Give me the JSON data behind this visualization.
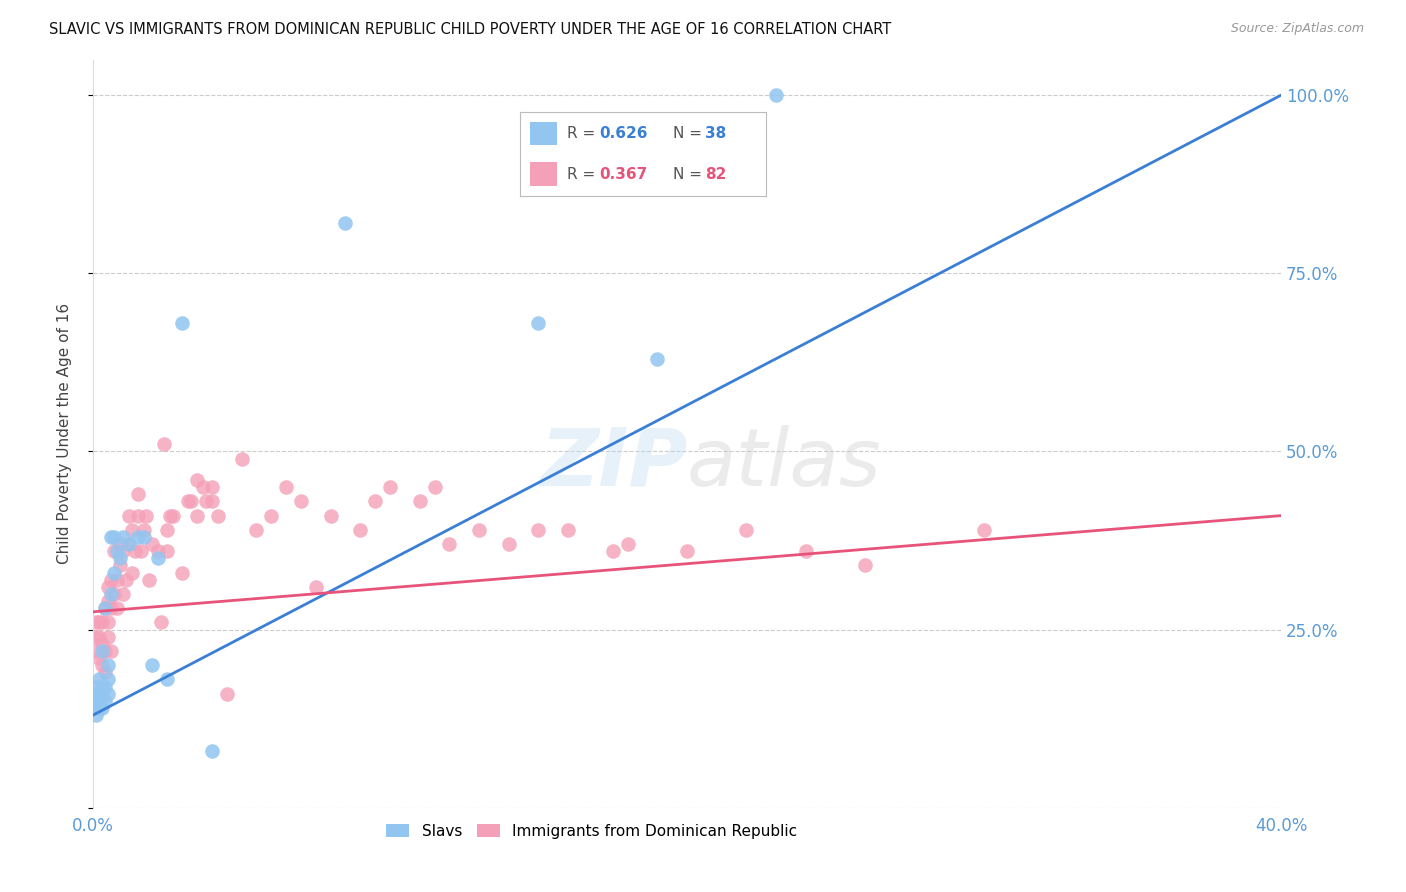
{
  "title": "SLAVIC VS IMMIGRANTS FROM DOMINICAN REPUBLIC CHILD POVERTY UNDER THE AGE OF 16 CORRELATION CHART",
  "source": "Source: ZipAtlas.com",
  "ylabel": "Child Poverty Under the Age of 16",
  "background_color": "#ffffff",
  "grid_color": "#cccccc",
  "slavic_R": 0.626,
  "slavic_N": 38,
  "dominican_R": 0.367,
  "dominican_N": 82,
  "blue_color": "#92c5f0",
  "pink_color": "#f4a0b8",
  "blue_line_color": "#3a7fd5",
  "pink_line_color": "#e8537a",
  "x_min": 0.0,
  "x_max": 0.4,
  "y_min": 0.0,
  "y_max": 1.05,
  "x_ticks": [
    0.0,
    0.05,
    0.1,
    0.15,
    0.2,
    0.25,
    0.3,
    0.35,
    0.4
  ],
  "y_ticks": [
    0.0,
    0.25,
    0.5,
    0.75,
    1.0
  ],
  "blue_line_x0": 0.0,
  "blue_line_y0": 0.13,
  "blue_line_x1": 0.4,
  "blue_line_y1": 1.0,
  "pink_line_x0": 0.0,
  "pink_line_y0": 0.275,
  "pink_line_x1": 0.4,
  "pink_line_y1": 0.41,
  "slavic_x": [
    0.001,
    0.001,
    0.001,
    0.001,
    0.001,
    0.002,
    0.002,
    0.002,
    0.002,
    0.003,
    0.003,
    0.003,
    0.003,
    0.004,
    0.004,
    0.004,
    0.005,
    0.005,
    0.005,
    0.006,
    0.006,
    0.007,
    0.007,
    0.008,
    0.009,
    0.01,
    0.012,
    0.015,
    0.017,
    0.02,
    0.022,
    0.025,
    0.03,
    0.04,
    0.085,
    0.15,
    0.19,
    0.23
  ],
  "slavic_y": [
    0.17,
    0.16,
    0.15,
    0.14,
    0.13,
    0.15,
    0.16,
    0.14,
    0.18,
    0.14,
    0.16,
    0.17,
    0.22,
    0.15,
    0.17,
    0.28,
    0.16,
    0.18,
    0.2,
    0.3,
    0.38,
    0.33,
    0.38,
    0.36,
    0.35,
    0.38,
    0.37,
    0.38,
    0.38,
    0.2,
    0.35,
    0.18,
    0.68,
    0.08,
    0.82,
    0.68,
    0.63,
    1.0
  ],
  "dominican_x": [
    0.001,
    0.001,
    0.001,
    0.002,
    0.002,
    0.002,
    0.003,
    0.003,
    0.003,
    0.004,
    0.004,
    0.004,
    0.005,
    0.005,
    0.005,
    0.005,
    0.006,
    0.006,
    0.006,
    0.007,
    0.007,
    0.008,
    0.008,
    0.009,
    0.009,
    0.01,
    0.01,
    0.011,
    0.012,
    0.012,
    0.013,
    0.013,
    0.014,
    0.015,
    0.015,
    0.016,
    0.017,
    0.018,
    0.019,
    0.02,
    0.022,
    0.023,
    0.024,
    0.025,
    0.025,
    0.026,
    0.027,
    0.03,
    0.032,
    0.033,
    0.035,
    0.035,
    0.037,
    0.038,
    0.04,
    0.04,
    0.042,
    0.045,
    0.05,
    0.055,
    0.06,
    0.065,
    0.07,
    0.075,
    0.08,
    0.09,
    0.095,
    0.1,
    0.11,
    0.115,
    0.12,
    0.13,
    0.14,
    0.15,
    0.16,
    0.175,
    0.18,
    0.2,
    0.22,
    0.24,
    0.26,
    0.3
  ],
  "dominican_y": [
    0.22,
    0.24,
    0.26,
    0.21,
    0.24,
    0.26,
    0.2,
    0.23,
    0.26,
    0.19,
    0.22,
    0.28,
    0.24,
    0.26,
    0.29,
    0.31,
    0.22,
    0.28,
    0.32,
    0.3,
    0.36,
    0.28,
    0.32,
    0.34,
    0.37,
    0.3,
    0.36,
    0.32,
    0.37,
    0.41,
    0.33,
    0.39,
    0.36,
    0.41,
    0.44,
    0.36,
    0.39,
    0.41,
    0.32,
    0.37,
    0.36,
    0.26,
    0.51,
    0.36,
    0.39,
    0.41,
    0.41,
    0.33,
    0.43,
    0.43,
    0.41,
    0.46,
    0.45,
    0.43,
    0.43,
    0.45,
    0.41,
    0.16,
    0.49,
    0.39,
    0.41,
    0.45,
    0.43,
    0.31,
    0.41,
    0.39,
    0.43,
    0.45,
    0.43,
    0.45,
    0.37,
    0.39,
    0.37,
    0.39,
    0.39,
    0.36,
    0.37,
    0.36,
    0.39,
    0.36,
    0.34,
    0.39
  ]
}
